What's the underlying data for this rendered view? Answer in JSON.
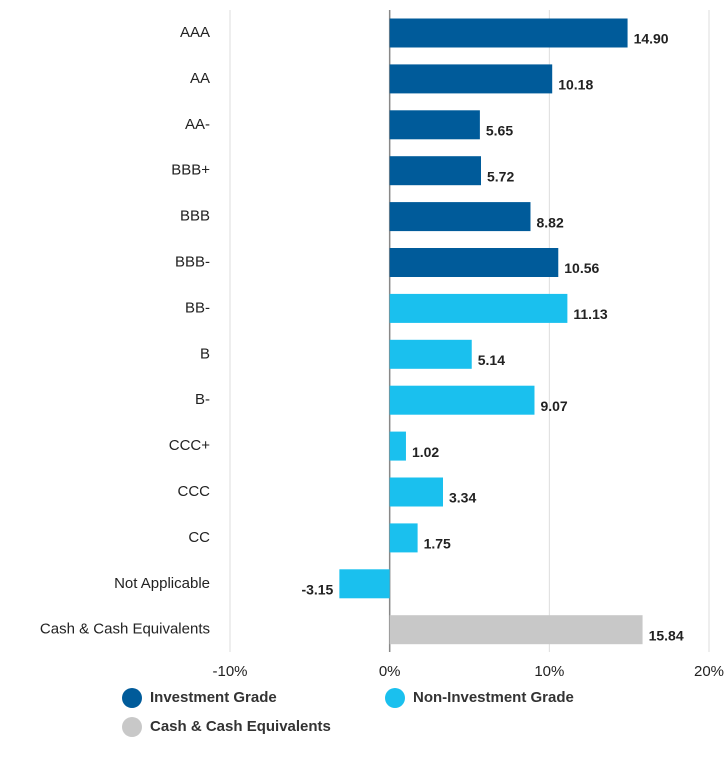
{
  "chart_data": {
    "type": "bar",
    "orientation": "horizontal",
    "categories": [
      "AAA",
      "AA",
      "AA-",
      "BBB+",
      "BBB",
      "BBB-",
      "BB-",
      "B",
      "B-",
      "CCC+",
      "CCC",
      "CC",
      "Not Applicable",
      "Cash & Cash Equivalents"
    ],
    "series": [
      {
        "name": "Investment Grade",
        "color": "#005b9a",
        "values": [
          14.9,
          10.18,
          5.65,
          5.72,
          8.82,
          10.56,
          null,
          null,
          null,
          null,
          null,
          null,
          null,
          null
        ],
        "value_labels": [
          "14.90",
          "10.18",
          "5.65",
          "5.72",
          "8.82",
          "10.56",
          null,
          null,
          null,
          null,
          null,
          null,
          null,
          null
        ]
      },
      {
        "name": "Non-Investment Grade",
        "color": "#1ac0ee",
        "values": [
          null,
          null,
          null,
          null,
          null,
          null,
          11.13,
          5.14,
          9.07,
          1.02,
          3.34,
          1.75,
          -3.15,
          null
        ],
        "value_labels": [
          null,
          null,
          null,
          null,
          null,
          null,
          "11.13",
          "5.14",
          "9.07",
          "1.02",
          "3.34",
          "1.75",
          "-3.15",
          null
        ]
      },
      {
        "name": "Cash & Cash Equivalents",
        "color": "#c8c8c8",
        "values": [
          null,
          null,
          null,
          null,
          null,
          null,
          null,
          null,
          null,
          null,
          null,
          null,
          null,
          15.84
        ],
        "value_labels": [
          null,
          null,
          null,
          null,
          null,
          null,
          null,
          null,
          null,
          null,
          null,
          null,
          null,
          "15.84"
        ]
      }
    ],
    "xlim": [
      -10,
      20
    ],
    "xticks": [
      {
        "value": -10,
        "label": "-10%"
      },
      {
        "value": 0,
        "label": "0%"
      },
      {
        "value": 10,
        "label": "10%"
      },
      {
        "value": 20,
        "label": "20%"
      }
    ],
    "grid": true
  }
}
